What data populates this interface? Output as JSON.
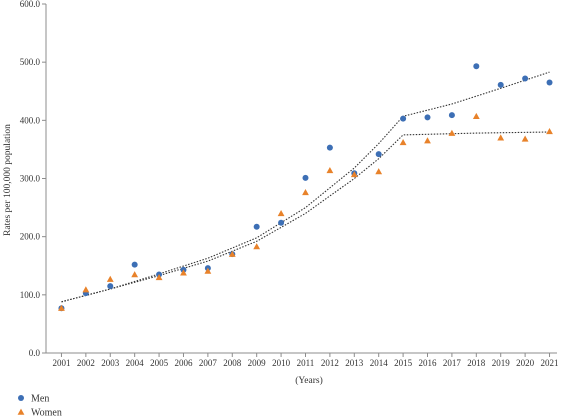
{
  "chart_data": {
    "type": "scatter",
    "title": "",
    "xlabel": "(Years)",
    "ylabel": "Rates per 100,000 population",
    "x": [
      2001,
      2002,
      2003,
      2004,
      2005,
      2006,
      2007,
      2008,
      2009,
      2010,
      2011,
      2012,
      2013,
      2014,
      2015,
      2016,
      2017,
      2018,
      2019,
      2020,
      2021
    ],
    "x_tick_labels": [
      "2001",
      "2002",
      "2003",
      "2004",
      "2005",
      "2006",
      "2007",
      "2008",
      "2009",
      "2010",
      "2011",
      "2012",
      "2013",
      "2014",
      "2015",
      "2016",
      "2017",
      "2018",
      "2019",
      "2020",
      "2021"
    ],
    "y_tick_labels": [
      "0.0",
      "100.0",
      "200.0",
      "300.0",
      "400.0",
      "500.0",
      "600.0"
    ],
    "y_ticks": [
      0,
      100,
      200,
      300,
      400,
      500,
      600
    ],
    "ylim": [
      0,
      600
    ],
    "grid": false,
    "legend_position": "bottom-left",
    "series": [
      {
        "name": "Men",
        "marker": "circle",
        "color": "#3d6fb5",
        "values": [
          77,
          103,
          115,
          152,
          135,
          143,
          146,
          170,
          217,
          224,
          301,
          353,
          309,
          342,
          403,
          405,
          409,
          493,
          461,
          472,
          465
        ],
        "trend": [
          [
            2001,
            88
          ],
          [
            2003,
            110
          ],
          [
            2005,
            136
          ],
          [
            2007,
            163
          ],
          [
            2009,
            198
          ],
          [
            2011,
            250
          ],
          [
            2013,
            318
          ],
          [
            2014,
            360
          ],
          [
            2015,
            407
          ],
          [
            2017,
            428
          ],
          [
            2019,
            455
          ],
          [
            2021,
            483
          ]
        ]
      },
      {
        "name": "Women",
        "marker": "triangle",
        "color": "#e8822a",
        "values": [
          77,
          109,
          127,
          135,
          130,
          138,
          141,
          170,
          183,
          240,
          276,
          314,
          307,
          312,
          362,
          365,
          378,
          407,
          370,
          368,
          381
        ],
        "trend": [
          [
            2001,
            88
          ],
          [
            2003,
            110
          ],
          [
            2005,
            133
          ],
          [
            2007,
            158
          ],
          [
            2009,
            192
          ],
          [
            2011,
            240
          ],
          [
            2013,
            300
          ],
          [
            2014,
            334
          ],
          [
            2015,
            375
          ],
          [
            2018,
            378
          ],
          [
            2021,
            380
          ]
        ]
      }
    ]
  }
}
